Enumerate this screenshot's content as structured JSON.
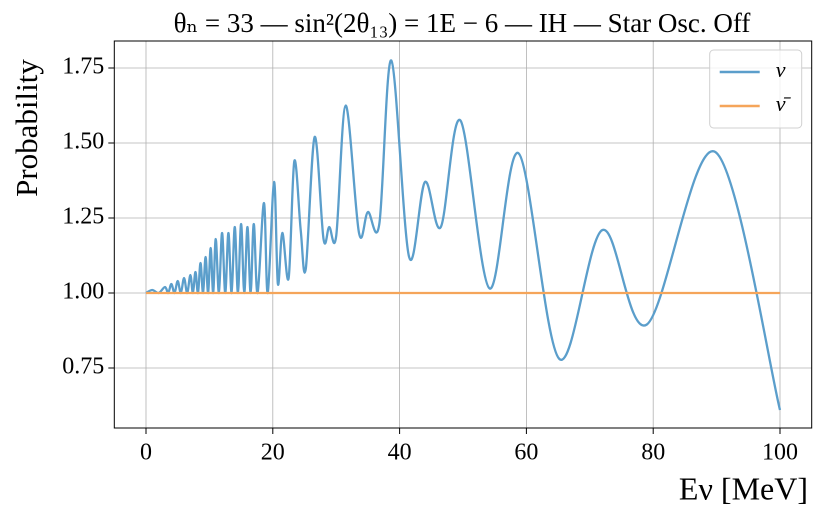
{
  "chart_data": {
    "type": "line",
    "title": "θₙ = 33 — sin²(2θ₁₃) = 1E − 6 — IH — Star Osc. Off",
    "x_label": "Eν [MeV]",
    "y_label": "Probability",
    "series": [
      {
        "name": "ν",
        "color": "#5b9ecb",
        "x": [
          0,
          1,
          2,
          3,
          3.5,
          4,
          4.5,
          5,
          5.5,
          6,
          6.5,
          7,
          7.4,
          7.8,
          8.2,
          8.6,
          9,
          9.4,
          9.8,
          10.2,
          10.6,
          11,
          11.5,
          12,
          12.5,
          13,
          13.5,
          14,
          14.5,
          15,
          15.5,
          16,
          16.5,
          17,
          17.6,
          18.6,
          19.2,
          20.2,
          20.8,
          21.5,
          22.5,
          23.4,
          24.4,
          25.2,
          26.6,
          28,
          28.9,
          30,
          31.5,
          33.6,
          35,
          36.8,
          38.7,
          41.5,
          44,
          46.5,
          49.6,
          54.2,
          58.8,
          65.2,
          72,
          79,
          89.8,
          100
        ],
        "values": [
          1.0,
          1.01,
          1.0,
          1.02,
          1.0,
          1.03,
          1.0,
          1.04,
          1.0,
          1.05,
          1.0,
          1.06,
          1.0,
          1.07,
          1.0,
          1.1,
          1.0,
          1.12,
          1.0,
          1.15,
          1.0,
          1.18,
          1.0,
          1.2,
          1.0,
          1.2,
          1.0,
          1.22,
          1.0,
          1.23,
          1.0,
          1.22,
          1.0,
          1.23,
          1.0,
          1.3,
          1.0,
          1.37,
          1.03,
          1.2,
          1.05,
          1.44,
          1.21,
          1.08,
          1.52,
          1.18,
          1.22,
          1.19,
          1.625,
          1.2,
          1.27,
          1.23,
          1.775,
          1.12,
          1.37,
          1.22,
          1.575,
          1.015,
          1.465,
          0.78,
          1.21,
          0.895,
          1.47,
          0.61
        ]
      },
      {
        "name": "ν̄",
        "color": "#f5a55a",
        "x": [
          0,
          100
        ],
        "values": [
          1.0,
          1.0
        ]
      }
    ],
    "xlim": [
      -5,
      105
    ],
    "ylim": [
      0.55,
      1.84
    ],
    "xticks": [
      0,
      20,
      40,
      60,
      80,
      100
    ],
    "yticks": [
      0.75,
      {
        "value": 1.0,
        "label": "1.00"
      },
      1.25,
      {
        "value": 1.5,
        "label": "1.50"
      },
      1.75
    ],
    "grid": true,
    "legend": "upper right"
  }
}
